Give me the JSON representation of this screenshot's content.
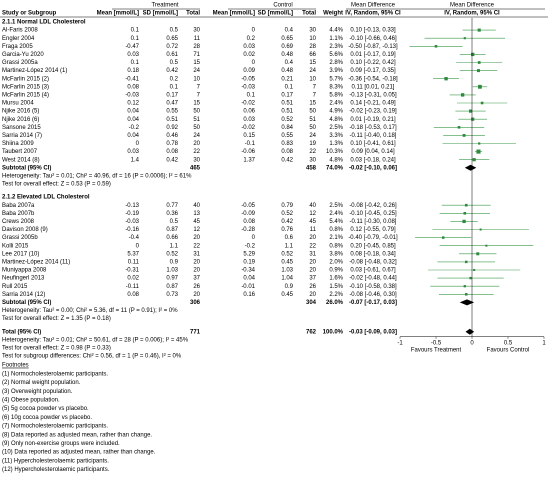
{
  "header": {
    "treatment": "Treatment",
    "control": "Control",
    "md_left": "Mean Difference",
    "md_right": "Mean Difference",
    "study": "Study or Subgroup",
    "t_mean": "Mean [mmol/L]",
    "t_sd": "SD [mmol/L]",
    "t_total": "Total",
    "c_mean": "Mean [mmol/L]",
    "c_sd": "SD [mmol/L]",
    "c_total": "Total",
    "weight": "Weight",
    "method_left": "IV, Random, 95% CI",
    "method_right": "IV, Random, 95% CI"
  },
  "sections": [
    {
      "title": "2.1.1 Normal LDL Cholesterol",
      "studies": [
        {
          "study": "Al-Faris 2008",
          "t_mean": 0.1,
          "t_sd": 0.5,
          "t_n": 30,
          "c_mean": 0,
          "c_sd": 0.4,
          "c_n": 30,
          "weight": "4.4%",
          "ci": "0.10 [-0.13, 0.33]",
          "md": 0.1,
          "lo": -0.13,
          "hi": 0.33
        },
        {
          "study": "Engler 2004",
          "t_mean": 0.1,
          "t_sd": 0.65,
          "t_n": 11,
          "c_mean": 0.2,
          "c_sd": 0.65,
          "c_n": 10,
          "weight": "1.1%",
          "ci": "-0.10 [-0.66, 0.46]",
          "md": -0.1,
          "lo": -0.66,
          "hi": 0.46
        },
        {
          "study": "Fraga 2005",
          "t_mean": -0.47,
          "t_sd": 0.72,
          "t_n": 28,
          "c_mean": 0.03,
          "c_sd": 0.69,
          "c_n": 28,
          "weight": "2.3%",
          "ci": "-0.50 [-0.87, -0.13]",
          "md": -0.5,
          "lo": -0.87,
          "hi": -0.13
        },
        {
          "study": "Garcia-Yu 2020",
          "t_mean": 0.03,
          "t_sd": 0.61,
          "t_n": 71,
          "c_mean": 0.02,
          "c_sd": 0.48,
          "c_n": 66,
          "weight": "5.6%",
          "ci": "0.01 [-0.17, 0.19]",
          "md": 0.01,
          "lo": -0.17,
          "hi": 0.19
        },
        {
          "study": "Grassi 2005a",
          "t_mean": 0.1,
          "t_sd": 0.5,
          "t_n": 15,
          "c_mean": 0,
          "c_sd": 0.4,
          "c_n": 15,
          "weight": "2.8%",
          "ci": "0.10 [-0.22, 0.42]",
          "md": 0.1,
          "lo": -0.22,
          "hi": 0.42
        },
        {
          "study": "Martinez-López 2014 (1)",
          "t_mean": 0.18,
          "t_sd": 0.42,
          "t_n": 24,
          "c_mean": 0.09,
          "c_sd": 0.48,
          "c_n": 24,
          "weight": "3.9%",
          "ci": "0.09 [-0.17, 0.35]",
          "md": 0.09,
          "lo": -0.17,
          "hi": 0.35
        },
        {
          "study": "McFarlin 2015 (2)",
          "t_mean": -0.41,
          "t_sd": 0.2,
          "t_n": 10,
          "c_mean": -0.05,
          "c_sd": 0.21,
          "c_n": 10,
          "weight": "5.7%",
          "ci": "-0.36 [-0.54, -0.18]",
          "md": -0.36,
          "lo": -0.54,
          "hi": -0.18
        },
        {
          "study": "McFarlin 2015 (3)",
          "t_mean": 0.08,
          "t_sd": 0.1,
          "t_n": 7,
          "c_mean": -0.03,
          "c_sd": 0.1,
          "c_n": 7,
          "weight": "8.3%",
          "ci": "0.11 [0.01, 0.21]",
          "md": 0.11,
          "lo": 0.01,
          "hi": 0.21
        },
        {
          "study": "McFarlin 2015 (4)",
          "t_mean": -0.03,
          "t_sd": 0.17,
          "t_n": 7,
          "c_mean": 0.1,
          "c_sd": 0.17,
          "c_n": 7,
          "weight": "5.8%",
          "ci": "-0.13 [-0.31, 0.05]",
          "md": -0.13,
          "lo": -0.31,
          "hi": 0.05
        },
        {
          "study": "Mursu 2004",
          "t_mean": 0.12,
          "t_sd": 0.47,
          "t_n": 15,
          "c_mean": -0.02,
          "c_sd": 0.51,
          "c_n": 15,
          "weight": "2.4%",
          "ci": "0.14 [-0.21, 0.49]",
          "md": 0.14,
          "lo": -0.21,
          "hi": 0.49
        },
        {
          "study": "Njike 2016 (5)",
          "t_mean": 0.04,
          "t_sd": 0.55,
          "t_n": 50,
          "c_mean": 0.06,
          "c_sd": 0.51,
          "c_n": 50,
          "weight": "4.9%",
          "ci": "-0.02 [-0.23, 0.19]",
          "md": -0.02,
          "lo": -0.23,
          "hi": 0.19
        },
        {
          "study": "Njike 2016 (6)",
          "t_mean": 0.04,
          "t_sd": 0.51,
          "t_n": 51,
          "c_mean": 0.03,
          "c_sd": 0.52,
          "c_n": 51,
          "weight": "4.8%",
          "ci": "0.01 [-0.19, 0.21]",
          "md": 0.01,
          "lo": -0.19,
          "hi": 0.21
        },
        {
          "study": "Sansone 2015",
          "t_mean": -0.2,
          "t_sd": 0.92,
          "t_n": 50,
          "c_mean": -0.02,
          "c_sd": 0.84,
          "c_n": 50,
          "weight": "2.5%",
          "ci": "-0.18 [-0.53, 0.17]",
          "md": -0.18,
          "lo": -0.53,
          "hi": 0.17
        },
        {
          "study": "Sarria 2014 (7)",
          "t_mean": 0.04,
          "t_sd": 0.46,
          "t_n": 24,
          "c_mean": 0.15,
          "c_sd": 0.55,
          "c_n": 24,
          "weight": "3.3%",
          "ci": "-0.11 [-0.40, 0.18]",
          "md": -0.11,
          "lo": -0.4,
          "hi": 0.18
        },
        {
          "study": "Shiina 2009",
          "t_mean": 0,
          "t_sd": 0.78,
          "t_n": 20,
          "c_mean": -0.1,
          "c_sd": 0.83,
          "c_n": 19,
          "weight": "1.3%",
          "ci": "0.10 [-0.41, 0.61]",
          "md": 0.1,
          "lo": -0.41,
          "hi": 0.61
        },
        {
          "study": "Taubert 2007",
          "t_mean": 0.03,
          "t_sd": 0.08,
          "t_n": 22,
          "c_mean": -0.06,
          "c_sd": 0.08,
          "c_n": 22,
          "weight": "10.3%",
          "ci": "0.09 [0.04, 0.14]",
          "md": 0.09,
          "lo": 0.04,
          "hi": 0.14
        },
        {
          "study": "West 2014 (8)",
          "t_mean": 1.4,
          "t_sd": 0.42,
          "t_n": 30,
          "c_mean": 1.37,
          "c_sd": 0.42,
          "c_n": 30,
          "weight": "4.8%",
          "ci": "0.03 [-0.18, 0.24]",
          "md": 0.03,
          "lo": -0.18,
          "hi": 0.24
        }
      ],
      "subtotal": {
        "label": "Subtotal (95% CI)",
        "t_n": 465,
        "c_n": 458,
        "weight": "74.0%",
        "ci": "-0.02 [-0.10, 0.06]",
        "md": -0.02,
        "lo": -0.1,
        "hi": 0.06
      },
      "heterogeneity": "Heterogeneity: Tau² = 0.01; Chi² = 40.96, df = 16 (P = 0.0006); I² = 61%",
      "overall": "Test for overall effect: Z = 0.53 (P = 0.59)"
    },
    {
      "title": "2.1.2 Elevated LDL Cholesterol",
      "studies": [
        {
          "study": "Baba 2007a",
          "t_mean": -0.13,
          "t_sd": 0.77,
          "t_n": 40,
          "c_mean": -0.05,
          "c_sd": 0.79,
          "c_n": 40,
          "weight": "2.5%",
          "ci": "-0.08 [-0.42, 0.26]",
          "md": -0.08,
          "lo": -0.42,
          "hi": 0.26
        },
        {
          "study": "Baba 2007b",
          "t_mean": -0.19,
          "t_sd": 0.36,
          "t_n": 13,
          "c_mean": -0.09,
          "c_sd": 0.52,
          "c_n": 12,
          "weight": "2.4%",
          "ci": "-0.10 [-0.45, 0.25]",
          "md": -0.1,
          "lo": -0.45,
          "hi": 0.25
        },
        {
          "study": "Crews 2008",
          "t_mean": -0.03,
          "t_sd": 0.5,
          "t_n": 45,
          "c_mean": 0.08,
          "c_sd": 0.42,
          "c_n": 45,
          "weight": "5.4%",
          "ci": "-0.11 [-0.30, 0.08]",
          "md": -0.11,
          "lo": -0.3,
          "hi": 0.08
        },
        {
          "study": "Davison 2008 (9)",
          "t_mean": -0.16,
          "t_sd": 0.87,
          "t_n": 12,
          "c_mean": -0.28,
          "c_sd": 0.76,
          "c_n": 11,
          "weight": "0.8%",
          "ci": "0.12 [-0.55, 0.79]",
          "md": 0.12,
          "lo": -0.55,
          "hi": 0.79
        },
        {
          "study": "Grassi 2005b",
          "t_mean": -0.4,
          "t_sd": 0.66,
          "t_n": 20,
          "c_mean": 0,
          "c_sd": 0.6,
          "c_n": 20,
          "weight": "2.1%",
          "ci": "-0.40 [-0.79, -0.01]",
          "md": -0.4,
          "lo": -0.79,
          "hi": -0.01
        },
        {
          "study": "Kolli 2015",
          "t_mean": 0,
          "t_sd": 1.1,
          "t_n": 22,
          "c_mean": -0.2,
          "c_sd": 1.1,
          "c_n": 22,
          "weight": "0.8%",
          "ci": "0.20 [-0.45, 0.85]",
          "md": 0.2,
          "lo": -0.45,
          "hi": 0.85
        },
        {
          "study": "Lee 2017 (10)",
          "t_mean": 5.37,
          "t_sd": 0.52,
          "t_n": 31,
          "c_mean": 5.29,
          "c_sd": 0.52,
          "c_n": 31,
          "weight": "3.8%",
          "ci": "0.08 [-0.18, 0.34]",
          "md": 0.08,
          "lo": -0.18,
          "hi": 0.34
        },
        {
          "study": "Martinez-López 2014 (11)",
          "t_mean": 0.11,
          "t_sd": 0.9,
          "t_n": 20,
          "c_mean": 0.19,
          "c_sd": 0.45,
          "c_n": 20,
          "weight": "2.0%",
          "ci": "-0.08 [-0.48, 0.32]",
          "md": -0.08,
          "lo": -0.48,
          "hi": 0.32
        },
        {
          "study": "Muniyappa 2008",
          "t_mean": -0.31,
          "t_sd": 1.03,
          "t_n": 20,
          "c_mean": -0.34,
          "c_sd": 1.03,
          "c_n": 20,
          "weight": "0.9%",
          "ci": "0.03 [-0.61, 0.67]",
          "md": 0.03,
          "lo": -0.61,
          "hi": 0.67
        },
        {
          "study": "Neufingerl 2013",
          "t_mean": 0.02,
          "t_sd": 0.97,
          "t_n": 37,
          "c_mean": 0.04,
          "c_sd": 1.04,
          "c_n": 37,
          "weight": "1.6%",
          "ci": "-0.02 [-0.48, 0.44]",
          "md": -0.02,
          "lo": -0.48,
          "hi": 0.44
        },
        {
          "study": "Rull 2015",
          "t_mean": -0.11,
          "t_sd": 0.87,
          "t_n": 26,
          "c_mean": -0.01,
          "c_sd": 0.9,
          "c_n": 26,
          "weight": "1.5%",
          "ci": "-0.10 [-0.58, 0.38]",
          "md": -0.1,
          "lo": -0.58,
          "hi": 0.38
        },
        {
          "study": "Sarria 2014 (12)",
          "t_mean": 0.08,
          "t_sd": 0.73,
          "t_n": 20,
          "c_mean": 0.16,
          "c_sd": 0.45,
          "c_n": 20,
          "weight": "2.2%",
          "ci": "-0.08 [-0.46, 0.30]",
          "md": -0.08,
          "lo": -0.46,
          "hi": 0.3
        }
      ],
      "subtotal": {
        "label": "Subtotal (95% CI)",
        "t_n": 306,
        "c_n": 304,
        "weight": "26.0%",
        "ci": "-0.07 [-0.17, 0.03]",
        "md": -0.07,
        "lo": -0.17,
        "hi": 0.03
      },
      "heterogeneity": "Heterogeneity: Tau² = 0.00; Chi² = 5.36, df = 11 (P = 0.91); I² = 0%",
      "overall": "Test for overall effect: Z = 1.35 (P = 0.18)"
    }
  ],
  "total": {
    "label": "Total (95% CI)",
    "t_n": 771,
    "c_n": 762,
    "weight": "100.0%",
    "ci": "-0.03 [-0.09, 0.03]",
    "md": -0.03,
    "lo": -0.09,
    "hi": 0.03,
    "heterogeneity": "Heterogeneity: Tau² = 0.01; Chi² = 50.61, df = 28 (P = 0.006); I² = 45%",
    "overall": "Test for overall effect: Z = 0.98 (P = 0.33)",
    "subgroup": "Test for subgroup differences: Chi² = 0.56, df = 1 (P = 0.46), I² = 0%"
  },
  "axis": {
    "xlim": [
      -1,
      1
    ],
    "xticks": [
      -1,
      -0.5,
      0,
      0.5,
      1
    ],
    "favours_left": "Favours Treatment",
    "favours_right": "Favours Control"
  },
  "footnotes_title": "Footnotes",
  "footnotes": [
    "(1) Normocholesterolaemic participants.",
    "(2) Normal weight population.",
    "(3) Overweight population.",
    "(4) Obese population.",
    "(5) 5g cocoa powder vs placebo.",
    "(6) 10g cocoa powder vs placebo.",
    "(7) Normocholesterolaemic participants.",
    "(8) Data reported as adjusted mean, rather than change.",
    "(9) Only non-exercise groups were included.",
    "(10) Data reported as adjusted mean, rather than change.",
    "(11) Hypercholesterolaemic participants.",
    "(12) Hypercholesterolaemic participants."
  ]
}
